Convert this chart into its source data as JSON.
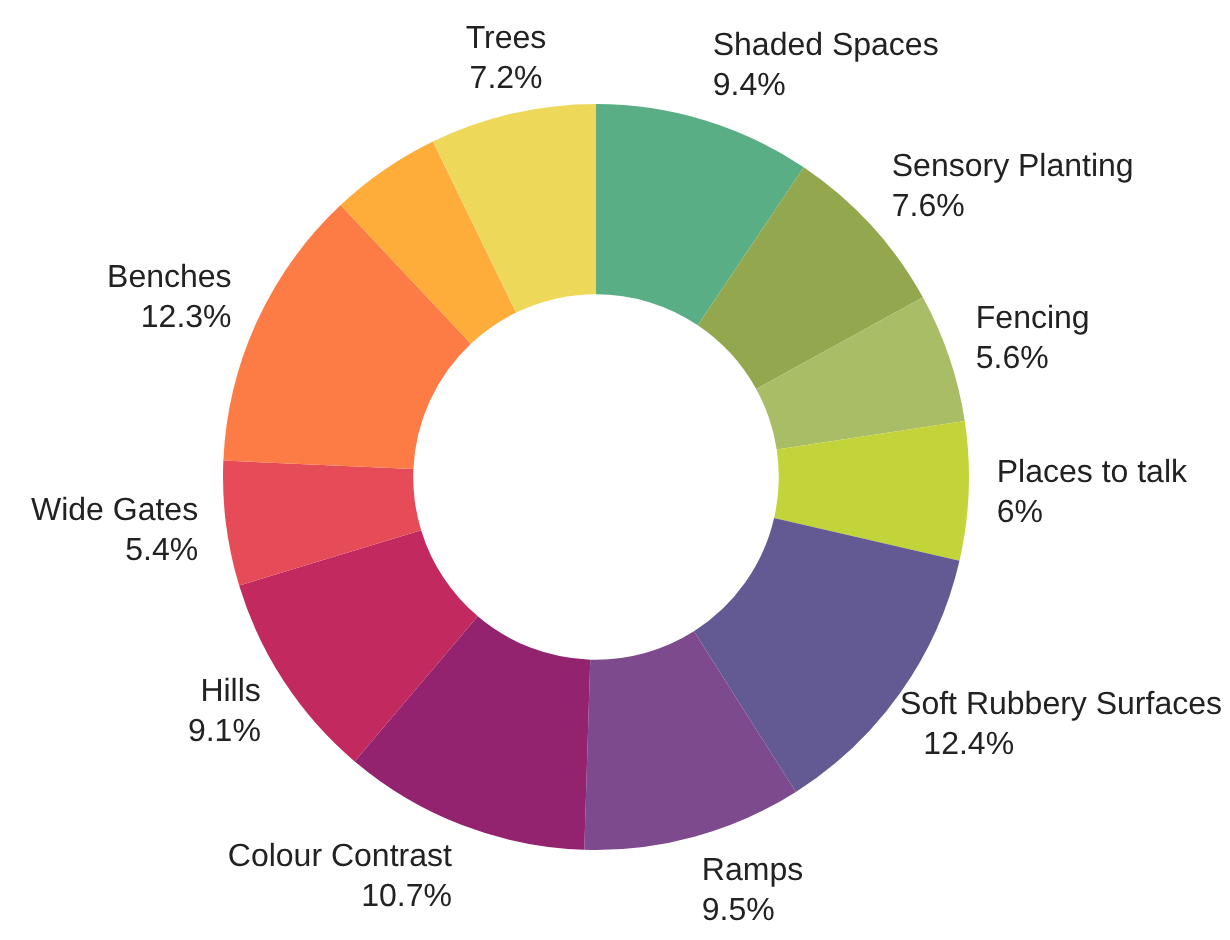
{
  "chart_data": {
    "type": "donut",
    "categories": [
      "Shaded Spaces",
      "Sensory Planting",
      "Fencing",
      "Places to talk",
      "Soft Rubbery Surfaces",
      "Ramps",
      "Colour Contrast",
      "Hills",
      "Wide Gates",
      "Benches",
      null,
      "Trees"
    ],
    "values": [
      9.4,
      7.6,
      5.6,
      6,
      12.4,
      9.5,
      10.7,
      9.1,
      5.4,
      12.3,
      4.8,
      7.2
    ],
    "value_labels": [
      "9.4%",
      "7.6%",
      "5.6%",
      "6%",
      "12.4%",
      "9.5%",
      "10.7%",
      "9.1%",
      "5.4%",
      "12.3%",
      null,
      "7.2%"
    ],
    "colors": [
      "#5aae85",
      "#93a84e",
      "#a9bc66",
      "#c3d43a",
      "#645a93",
      "#7e4a8e",
      "#93226f",
      "#c1295f",
      "#e64c57",
      "#fd7c46",
      "#fead3b",
      "#eed85a"
    ],
    "legend": false
  }
}
